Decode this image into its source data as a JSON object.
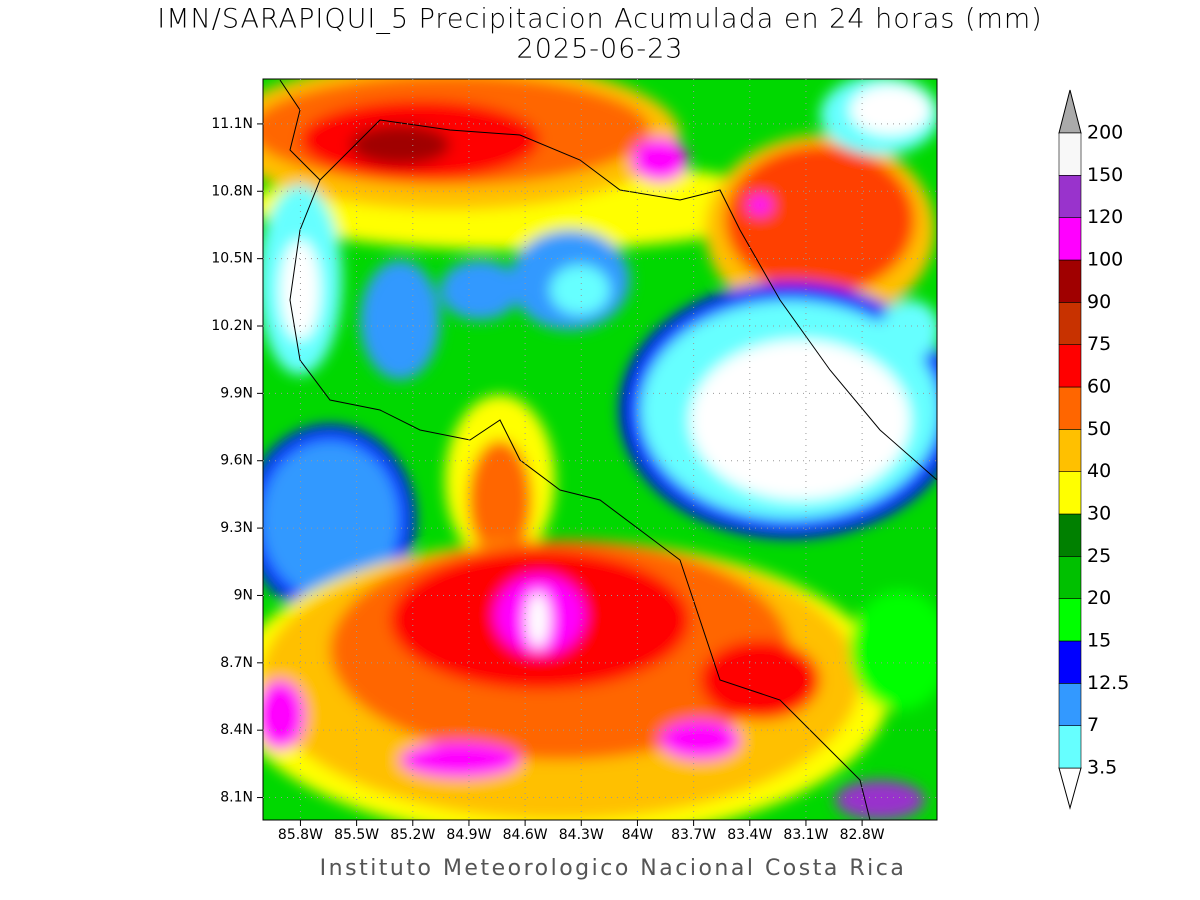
{
  "title": "IMN/SARAPIQUI_5 Precipitacion Acumulada en 24 horas (mm)",
  "subtitle": "2025-06-23",
  "footer": "Instituto Meteorologico Nacional Costa Rica",
  "map": {
    "lon_range": [
      -86.0,
      -82.4
    ],
    "lat_range": [
      8.0,
      11.3
    ],
    "lat_ticks": [
      {
        "value": 8.1,
        "label": "8.1N"
      },
      {
        "value": 8.4,
        "label": "8.4N"
      },
      {
        "value": 8.7,
        "label": "8.7N"
      },
      {
        "value": 9.0,
        "label": "9N"
      },
      {
        "value": 9.3,
        "label": "9.3N"
      },
      {
        "value": 9.6,
        "label": "9.6N"
      },
      {
        "value": 9.9,
        "label": "9.9N"
      },
      {
        "value": 10.2,
        "label": "10.2N"
      },
      {
        "value": 10.5,
        "label": "10.5N"
      },
      {
        "value": 10.8,
        "label": "10.8N"
      },
      {
        "value": 11.1,
        "label": "11.1N"
      }
    ],
    "lon_ticks": [
      {
        "value": -85.8,
        "label": "85.8W"
      },
      {
        "value": -85.5,
        "label": "85.5W"
      },
      {
        "value": -85.2,
        "label": "85.2W"
      },
      {
        "value": -84.9,
        "label": "84.9W"
      },
      {
        "value": -84.6,
        "label": "84.6W"
      },
      {
        "value": -84.3,
        "label": "84.3W"
      },
      {
        "value": -84.0,
        "label": "84W"
      },
      {
        "value": -83.7,
        "label": "83.7W"
      },
      {
        "value": -83.4,
        "label": "83.4W"
      },
      {
        "value": -83.1,
        "label": "83.1W"
      },
      {
        "value": -82.8,
        "label": "82.8W"
      }
    ]
  },
  "colorbar": {
    "levels": [
      3.5,
      7,
      12.5,
      15,
      20,
      25,
      30,
      40,
      50,
      60,
      75,
      90,
      100,
      120,
      150,
      200
    ],
    "colors": [
      "#66ffff",
      "#3399ff",
      "#0000ff",
      "#00ff00",
      "#00c000",
      "#008000",
      "#ffff00",
      "#ffc000",
      "#ff6600",
      "#ff0000",
      "#c83200",
      "#a00000",
      "#ff00ff",
      "#9933cc",
      "#f8f8f8"
    ],
    "under_color": "#ffffff",
    "over_color": "#aaaaaa"
  }
}
